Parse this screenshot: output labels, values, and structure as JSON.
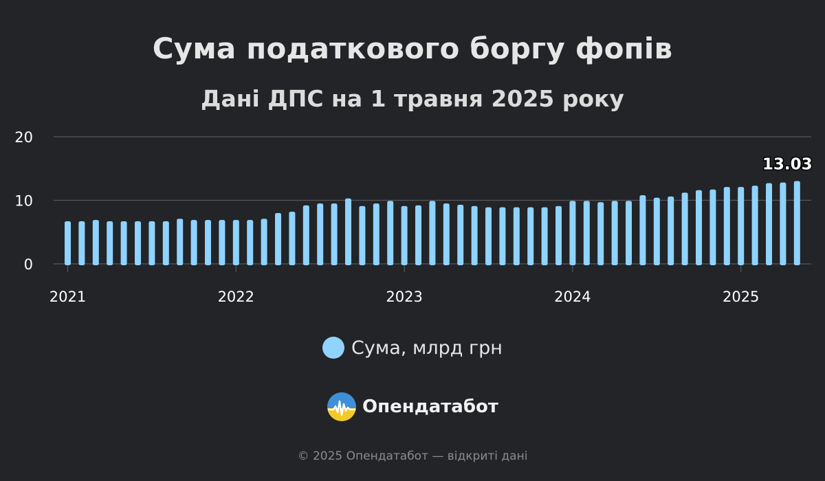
{
  "title": "Сума податкового боргу фопів",
  "subtitle": "Дані ДПС на 1 травня 2025 року",
  "legend": {
    "label": "Сума, млрд грн",
    "color": "#8fd3fe"
  },
  "brand": {
    "name": "Опендатабот",
    "logo_icon": "opendatabot-logo-icon"
  },
  "footer": "© 2025 Опендатабот — відкриті дані",
  "colors": {
    "background": "#222428",
    "bar": "#8fd3fe",
    "grid": "#55585c",
    "axis_text": "#ffffff"
  },
  "chart_data": {
    "type": "bar",
    "series": [
      {
        "name": "Сума, млрд грн",
        "values": [
          6.7,
          6.7,
          6.9,
          6.7,
          6.7,
          6.7,
          6.7,
          6.7,
          7.1,
          6.9,
          6.9,
          6.9,
          6.9,
          6.9,
          7.1,
          8.0,
          8.2,
          9.2,
          9.5,
          9.5,
          10.3,
          9.1,
          9.5,
          9.9,
          9.1,
          9.2,
          9.9,
          9.5,
          9.3,
          9.1,
          8.9,
          8.9,
          8.9,
          8.9,
          8.9,
          9.1,
          9.9,
          9.9,
          9.7,
          9.9,
          9.9,
          10.8,
          10.4,
          10.6,
          11.2,
          11.6,
          11.7,
          12.1,
          12.1,
          12.3,
          12.7,
          12.8,
          13.03
        ]
      }
    ],
    "x_start": "2021-01",
    "x_ticks": [
      "2021",
      "2022",
      "2023",
      "2024",
      "2025"
    ],
    "y_ticks": [
      "0",
      "10",
      "20"
    ],
    "ylim": [
      0,
      20
    ],
    "grid": true,
    "last_value_label": "13.03",
    "legend_position": "bottom"
  }
}
